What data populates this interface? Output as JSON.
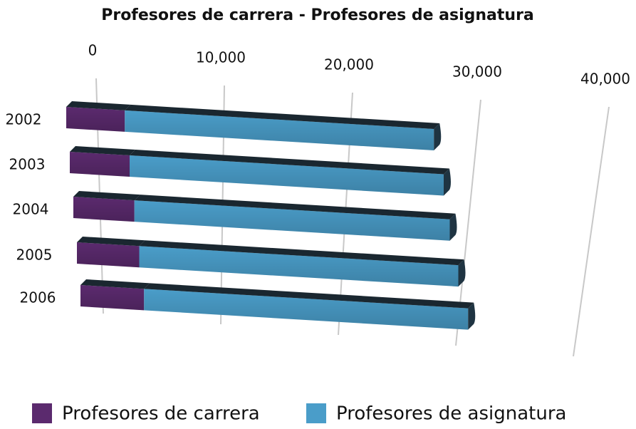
{
  "chart_data": {
    "type": "bar3d_stacked_horizontal",
    "title": "Profesores de carrera - Profesores de asignatura",
    "categories": [
      "2002",
      "2003",
      "2004",
      "2005",
      "2006"
    ],
    "series": [
      {
        "name": "Profesores de carrera",
        "color": "#5b2a6e",
        "values": [
          4700,
          4800,
          4900,
          5000,
          5100
        ]
      },
      {
        "name": "Profesores de asignatura",
        "color": "#4a9dc9",
        "values": [
          24800,
          25200,
          25300,
          25600,
          26000
        ]
      }
    ],
    "xlim": [
      0,
      40000
    ],
    "xticks": [
      0,
      {
        "value": 10000,
        "label": "10,000"
      },
      {
        "value": 20000,
        "label": "20,000"
      },
      {
        "value": 30000,
        "label": "30,000"
      },
      {
        "value": 40000,
        "label": "40,000"
      }
    ],
    "grid": true,
    "legend": "bottom"
  }
}
